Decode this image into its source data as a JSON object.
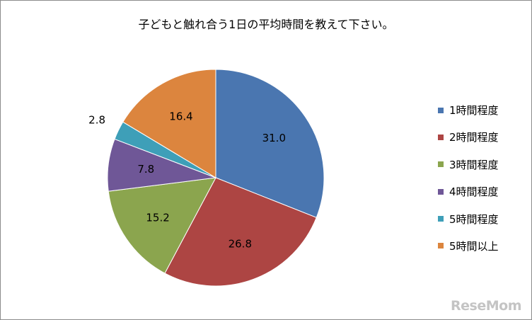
{
  "chart_data": {
    "type": "pie",
    "title": "子どもと触れ合う1日の平均時間を教えて下さい。",
    "categories": [
      "1時間程度",
      "2時間程度",
      "3時間程度",
      "4時間程度",
      "5時間程度",
      "5時間以上"
    ],
    "values": [
      31.0,
      26.8,
      15.2,
      7.8,
      2.8,
      16.4
    ],
    "value_labels": [
      "31.0",
      "26.8",
      "15.2",
      "7.8",
      "2.8",
      "16.4"
    ],
    "colors": [
      "#4a76b0",
      "#ad4543",
      "#8ba54e",
      "#6f5797",
      "#3e9fb8",
      "#dc853e"
    ],
    "start_angle": "12 o'clock",
    "direction": "clockwise",
    "legend_position": "right"
  },
  "watermark": "ReseMom"
}
